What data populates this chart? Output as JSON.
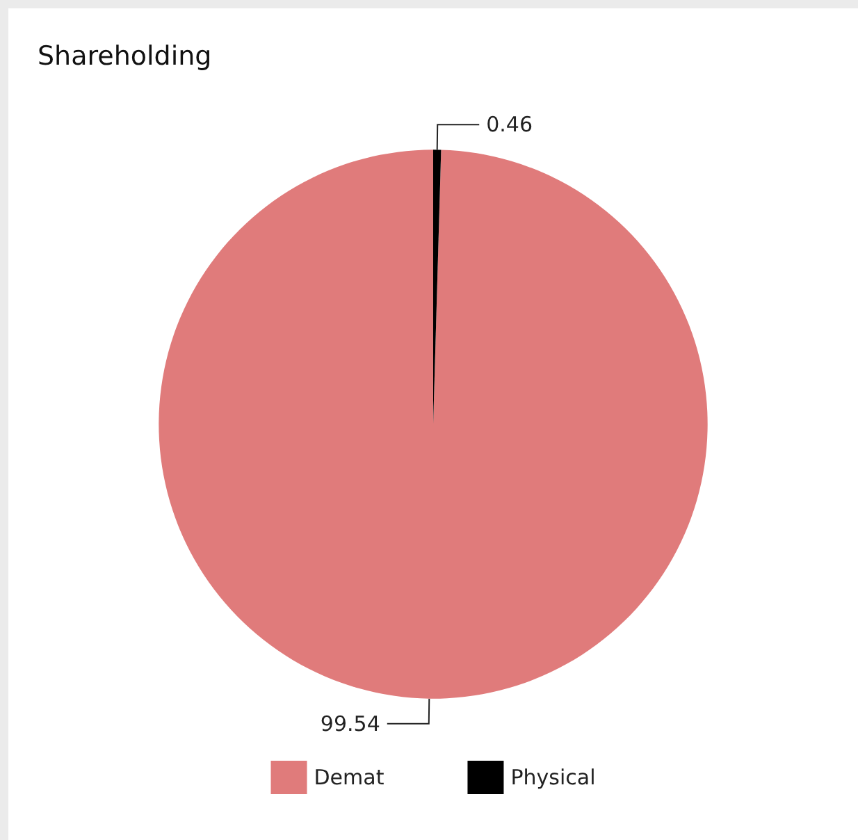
{
  "chart_data": {
    "type": "pie",
    "title": "Shareholding",
    "categories": [
      "Demat",
      "Physical"
    ],
    "values": [
      99.54,
      0.46
    ],
    "colors": [
      "#e07b7b",
      "#000000"
    ],
    "data_labels": true,
    "legend": "bottom"
  }
}
